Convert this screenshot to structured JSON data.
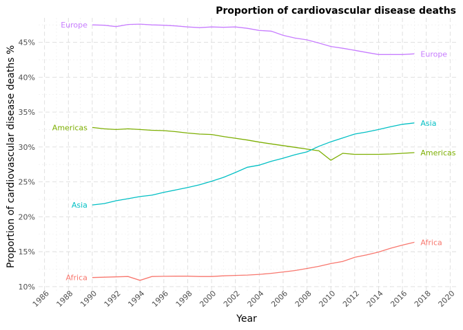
{
  "chart_data": {
    "type": "line",
    "title": "Proportion of cardiovascular disease deaths",
    "xlabel": "Year",
    "ylabel": "Proportion of cardiovascular disease deaths %",
    "xlim": [
      1985.5,
      2020.5
    ],
    "ylim": [
      9.3,
      48.5
    ],
    "x_ticks": [
      1986,
      1988,
      1990,
      1992,
      1994,
      1996,
      1998,
      2000,
      2002,
      2004,
      2006,
      2008,
      2010,
      2012,
      2014,
      2016,
      2018,
      2020
    ],
    "y_ticks": [
      10,
      15,
      20,
      25,
      30,
      35,
      40,
      45
    ],
    "y_tick_suffix": "%",
    "grid": true,
    "legend": "none (series labelled at line ends)",
    "x": [
      1990,
      1991,
      1992,
      1993,
      1994,
      1995,
      1996,
      1997,
      1998,
      1999,
      2000,
      2001,
      2002,
      2003,
      2004,
      2005,
      2006,
      2007,
      2008,
      2009,
      2010,
      2011,
      2012,
      2013,
      2014,
      2015,
      2016,
      2017
    ],
    "series": [
      {
        "name": "Africa",
        "color": "#F8766D",
        "values": [
          11.3,
          11.35,
          11.4,
          11.45,
          10.9,
          11.45,
          11.48,
          11.5,
          11.5,
          11.45,
          11.45,
          11.55,
          11.6,
          11.65,
          11.75,
          11.9,
          12.1,
          12.3,
          12.6,
          12.9,
          13.3,
          13.6,
          14.2,
          14.55,
          14.95,
          15.5,
          15.95,
          16.35
        ]
      },
      {
        "name": "Americas",
        "color": "#7CAE00",
        "values": [
          32.8,
          32.6,
          32.5,
          32.6,
          32.5,
          32.4,
          32.35,
          32.2,
          32.0,
          31.85,
          31.8,
          31.5,
          31.25,
          31.0,
          30.7,
          30.45,
          30.2,
          29.95,
          29.7,
          29.45,
          28.1,
          29.1,
          28.95,
          28.95,
          28.95,
          29.0,
          29.1,
          29.2
        ]
      },
      {
        "name": "Asia",
        "color": "#00BFC4",
        "values": [
          21.7,
          21.9,
          22.3,
          22.6,
          22.9,
          23.1,
          23.5,
          23.85,
          24.2,
          24.6,
          25.1,
          25.65,
          26.35,
          27.1,
          27.4,
          27.95,
          28.4,
          28.9,
          29.3,
          30.1,
          30.75,
          31.3,
          31.85,
          32.15,
          32.5,
          32.9,
          33.25,
          33.45
        ]
      },
      {
        "name": "Europe",
        "color": "#C77CFF",
        "values": [
          47.5,
          47.45,
          47.25,
          47.55,
          47.6,
          47.5,
          47.45,
          47.35,
          47.2,
          47.1,
          47.2,
          47.15,
          47.2,
          47.0,
          46.7,
          46.6,
          46.0,
          45.6,
          45.35,
          44.9,
          44.4,
          44.15,
          43.85,
          43.55,
          43.25,
          43.25,
          43.25,
          43.35
        ]
      }
    ]
  }
}
